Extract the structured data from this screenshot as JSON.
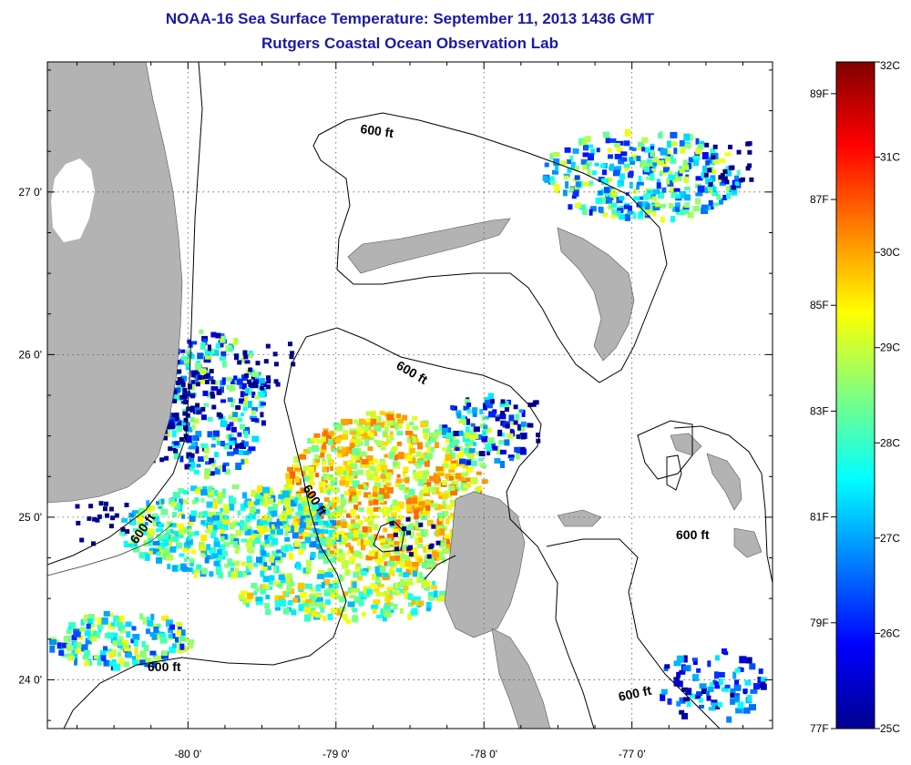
{
  "header": {
    "title": "NOAA-16 Sea Surface Temperature:  September 11, 2013 1436 GMT",
    "subtitle": "Rutgers Coastal Ocean Observation Lab"
  },
  "map": {
    "lon_ticks": [
      "-80 0'",
      "-79 0'",
      "-78 0'",
      "-77 0'"
    ],
    "lat_ticks": [
      "27 0'",
      "26 0'",
      "25 0'",
      "24 0'"
    ],
    "lon_range": [
      -80.95,
      -76.05
    ],
    "lat_range": [
      23.7,
      27.8
    ],
    "isobath_label": "600 ft",
    "land_color": "#b3b3b3",
    "cloud_color": "#ffffff"
  },
  "colorbar": {
    "celsius_ticks": [
      "32C",
      "31C",
      "30C",
      "29C",
      "28C",
      "27C",
      "26C",
      "25C"
    ],
    "celsius_values": [
      32,
      31,
      30,
      29,
      28,
      27,
      26,
      25
    ],
    "fahrenheit_ticks": [
      "89F",
      "87F",
      "85F",
      "83F",
      "81F",
      "79F",
      "77F"
    ],
    "fahrenheit_values": [
      89,
      87,
      85,
      83,
      81,
      79,
      77
    ],
    "range_c": [
      25,
      32
    ],
    "colormap": "jet"
  }
}
